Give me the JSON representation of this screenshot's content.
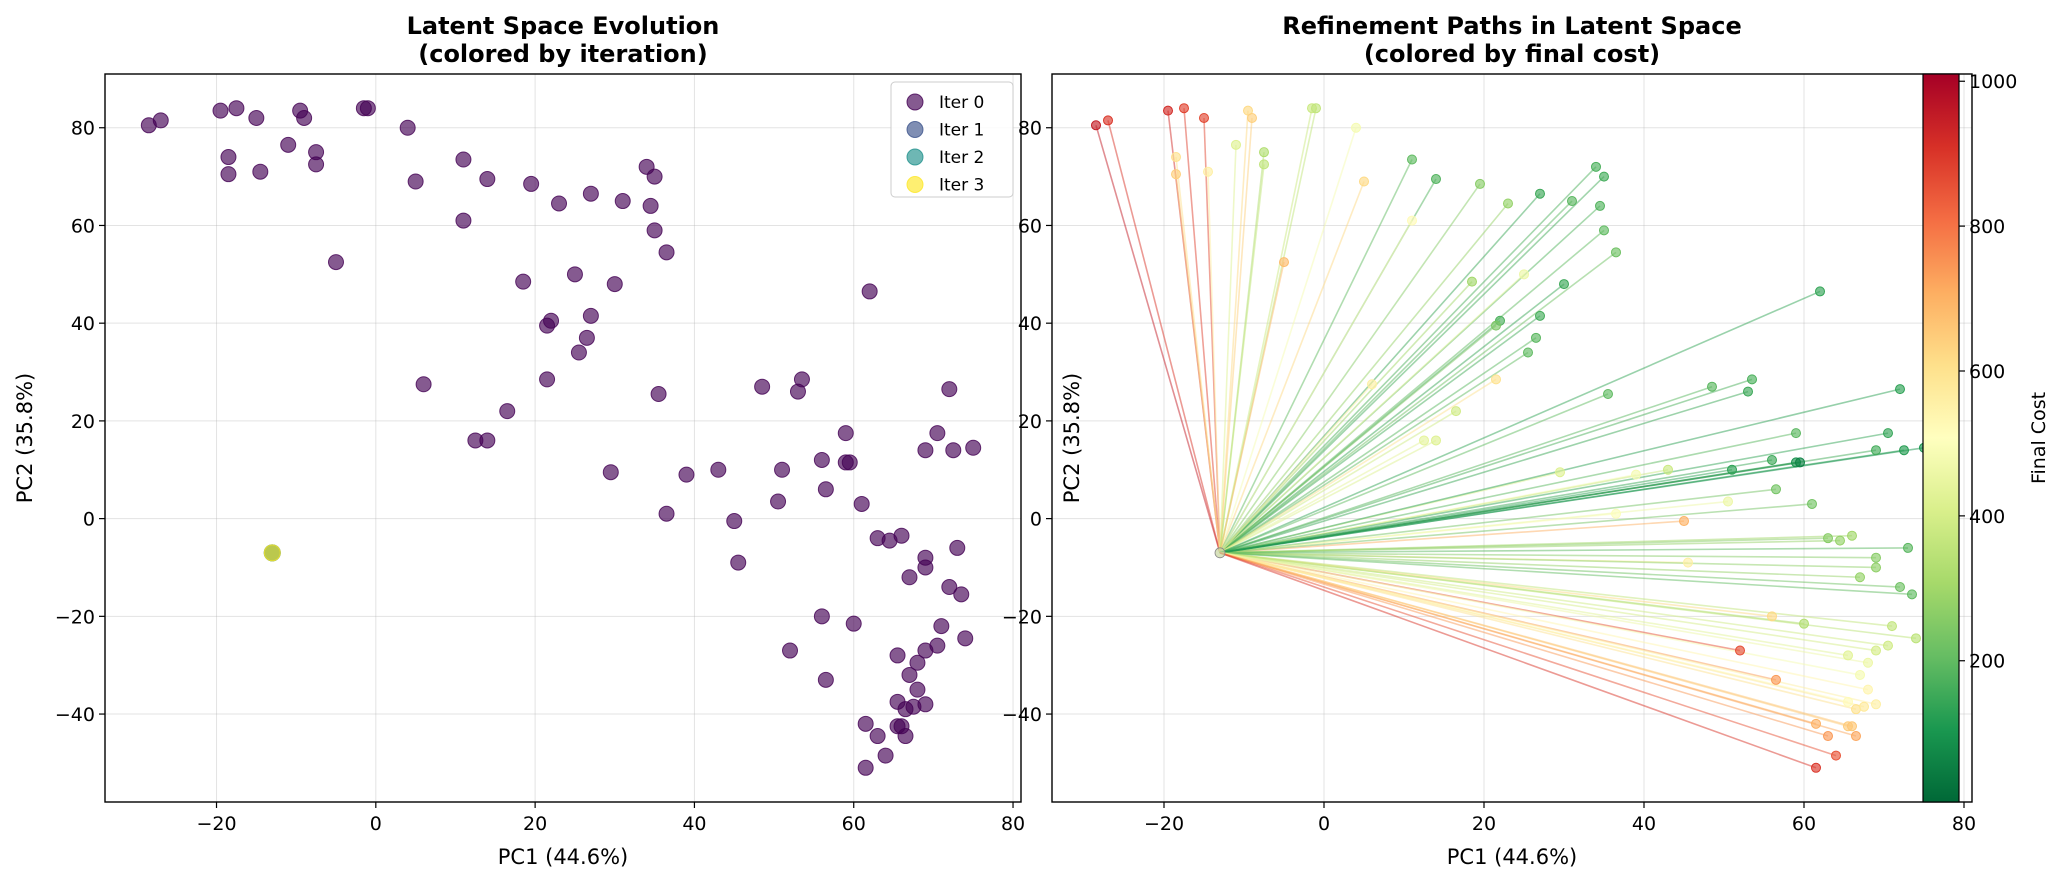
{
  "chart_data": [
    {
      "type": "scatter",
      "title": "Latent Space Evolution",
      "subtitle": "(colored by iteration)",
      "xlabel": "PC1 (44.6%)",
      "ylabel": "PC2 (35.8%)",
      "xlim": [
        -34,
        81
      ],
      "ylim": [
        -58,
        91
      ],
      "xticks": [
        -20,
        0,
        20,
        40,
        60,
        80
      ],
      "yticks": [
        -40,
        -20,
        0,
        20,
        40,
        60,
        80
      ],
      "grid": true,
      "legend_position": "top-right",
      "series": [
        {
          "name": "Iter 0",
          "color": "#440154",
          "note": "initial points",
          "source": "points"
        },
        {
          "name": "Iter 1",
          "color": "#3b528b",
          "source": "origin"
        },
        {
          "name": "Iter 2",
          "color": "#21918c",
          "source": "origin"
        },
        {
          "name": "Iter 3",
          "color": "#fde725",
          "source": "origin"
        }
      ],
      "origin": [
        -13,
        -7
      ],
      "points": [
        [
          -28.5,
          80.5
        ],
        [
          -27,
          81.5
        ],
        [
          -19.5,
          83.5
        ],
        [
          -17.5,
          84
        ],
        [
          -15,
          82
        ],
        [
          -9.5,
          83.5
        ],
        [
          -9,
          82
        ],
        [
          -1.5,
          84
        ],
        [
          -1,
          84
        ],
        [
          4,
          80
        ],
        [
          -18.5,
          74
        ],
        [
          -18.5,
          70.5
        ],
        [
          -14.5,
          71
        ],
        [
          -11,
          76.5
        ],
        [
          -7.5,
          75
        ],
        [
          -7.5,
          72.5
        ],
        [
          5,
          69
        ],
        [
          11,
          73.5
        ],
        [
          14,
          69.5
        ],
        [
          19.5,
          68.5
        ],
        [
          23,
          64.5
        ],
        [
          27,
          66.5
        ],
        [
          31,
          65
        ],
        [
          34,
          72
        ],
        [
          35,
          70
        ],
        [
          34.5,
          64
        ],
        [
          35,
          59
        ],
        [
          36.5,
          54.5
        ],
        [
          11,
          61
        ],
        [
          -5,
          52.5
        ],
        [
          18.5,
          48.5
        ],
        [
          25,
          50
        ],
        [
          30,
          48
        ],
        [
          22,
          40.5
        ],
        [
          21.5,
          39.5
        ],
        [
          27,
          41.5
        ],
        [
          26.5,
          37
        ],
        [
          25.5,
          34
        ],
        [
          6,
          27.5
        ],
        [
          21.5,
          28.5
        ],
        [
          16.5,
          22
        ],
        [
          12.5,
          16
        ],
        [
          14,
          16
        ],
        [
          29.5,
          9.5
        ],
        [
          36.5,
          1
        ],
        [
          35.5,
          25.5
        ],
        [
          39,
          9
        ],
        [
          43,
          10
        ],
        [
          45,
          -0.5
        ],
        [
          45.5,
          -9
        ],
        [
          48.5,
          27
        ],
        [
          53.5,
          28.5
        ],
        [
          53,
          26
        ],
        [
          51,
          10
        ],
        [
          50.5,
          3.5
        ],
        [
          56,
          12
        ],
        [
          56.5,
          6
        ],
        [
          59,
          17.5
        ],
        [
          59,
          11.5
        ],
        [
          59.5,
          11.5
        ],
        [
          62,
          46.5
        ],
        [
          61,
          3
        ],
        [
          60,
          -21.5
        ],
        [
          56,
          -20
        ],
        [
          56.5,
          -33
        ],
        [
          52,
          -27
        ],
        [
          63,
          -4
        ],
        [
          64.5,
          -4.5
        ],
        [
          66,
          -3.5
        ],
        [
          67,
          -12
        ],
        [
          69,
          -8
        ],
        [
          69,
          -10
        ],
        [
          69,
          14
        ],
        [
          70.5,
          17.5
        ],
        [
          72,
          26.5
        ],
        [
          72.5,
          14
        ],
        [
          75,
          14.5
        ],
        [
          73,
          -6
        ],
        [
          72,
          -14
        ],
        [
          73.5,
          -15.5
        ],
        [
          71,
          -22
        ],
        [
          70.5,
          -26
        ],
        [
          69,
          -27
        ],
        [
          68,
          -29.5
        ],
        [
          74,
          -24.5
        ],
        [
          65.5,
          -28
        ],
        [
          67,
          -32
        ],
        [
          68,
          -35
        ],
        [
          69,
          -38
        ],
        [
          65.5,
          -37.5
        ],
        [
          66.5,
          -39
        ],
        [
          67.5,
          -38.5
        ],
        [
          65.5,
          -42.5
        ],
        [
          66,
          -42.5
        ],
        [
          61.5,
          -42
        ],
        [
          66.5,
          -44.5
        ],
        [
          63,
          -44.5
        ],
        [
          64,
          -48.5
        ],
        [
          61.5,
          -51
        ]
      ]
    },
    {
      "type": "line",
      "title": "Refinement Paths in Latent Space",
      "subtitle": "(colored by final cost)",
      "xlabel": "PC1 (44.6%)",
      "ylabel": "PC2 (35.8%)",
      "xlim": [
        -34,
        81
      ],
      "ylim": [
        -58,
        91
      ],
      "xticks": [
        -20,
        0,
        20,
        40,
        60,
        80
      ],
      "yticks": [
        -40,
        -20,
        0,
        20,
        40,
        60,
        80
      ],
      "grid": true,
      "colorbar": {
        "label": "Final Cost",
        "range": [
          5,
          1010
        ],
        "ticks": [
          200,
          400,
          600,
          800,
          1000
        ],
        "colormap": "RdYlGn_r"
      },
      "origin": [
        -13,
        -7
      ],
      "note": "each path runs from origin to a point; cost values estimated from colors",
      "paths": [
        [
          -28.5,
          80.5,
          950
        ],
        [
          -27,
          81.5,
          900
        ],
        [
          -19.5,
          83.5,
          920
        ],
        [
          -17.5,
          84,
          880
        ],
        [
          -15,
          82,
          870
        ],
        [
          -9.5,
          83.5,
          620
        ],
        [
          -9,
          82,
          640
        ],
        [
          -1.5,
          84,
          380
        ],
        [
          -1,
          84,
          360
        ],
        [
          4,
          80,
          480
        ],
        [
          -18.5,
          74,
          600
        ],
        [
          -18.5,
          70.5,
          640
        ],
        [
          -14.5,
          71,
          560
        ],
        [
          -11,
          76.5,
          420
        ],
        [
          -7.5,
          75,
          330
        ],
        [
          -7.5,
          72.5,
          360
        ],
        [
          5,
          69,
          620
        ],
        [
          11,
          73.5,
          200
        ],
        [
          14,
          69.5,
          180
        ],
        [
          19.5,
          68.5,
          260
        ],
        [
          23,
          64.5,
          280
        ],
        [
          27,
          66.5,
          150
        ],
        [
          31,
          65,
          190
        ],
        [
          34,
          72,
          170
        ],
        [
          35,
          70,
          160
        ],
        [
          34.5,
          64,
          180
        ],
        [
          35,
          59,
          200
        ],
        [
          36.5,
          54.5,
          220
        ],
        [
          11,
          61,
          520
        ],
        [
          -5,
          52.5,
          680
        ],
        [
          18.5,
          48.5,
          300
        ],
        [
          25,
          50,
          460
        ],
        [
          30,
          48,
          150
        ],
        [
          22,
          40.5,
          170
        ],
        [
          21.5,
          39.5,
          240
        ],
        [
          27,
          41.5,
          160
        ],
        [
          26.5,
          37,
          190
        ],
        [
          25.5,
          34,
          200
        ],
        [
          6,
          27.5,
          560
        ],
        [
          21.5,
          28.5,
          600
        ],
        [
          16.5,
          22,
          390
        ],
        [
          12.5,
          16,
          440
        ],
        [
          14,
          16,
          420
        ],
        [
          29.5,
          9.5,
          420
        ],
        [
          36.5,
          1,
          500
        ],
        [
          35.5,
          25.5,
          200
        ],
        [
          39,
          9,
          480
        ],
        [
          43,
          10,
          380
        ],
        [
          45,
          -0.5,
          700
        ],
        [
          45.5,
          -9,
          560
        ],
        [
          48.5,
          27,
          190
        ],
        [
          53.5,
          28.5,
          170
        ],
        [
          53,
          26,
          150
        ],
        [
          51,
          10,
          130
        ],
        [
          50.5,
          3.5,
          460
        ],
        [
          56,
          12,
          150
        ],
        [
          56.5,
          6,
          230
        ],
        [
          59,
          17.5,
          190
        ],
        [
          59,
          11.5,
          90
        ],
        [
          59.5,
          11.5,
          60
        ],
        [
          62,
          46.5,
          140
        ],
        [
          61,
          3,
          230
        ],
        [
          60,
          -21.5,
          330
        ],
        [
          56,
          -20,
          620
        ],
        [
          56.5,
          -33,
          740
        ],
        [
          52,
          -27,
          860
        ],
        [
          63,
          -4,
          260
        ],
        [
          64.5,
          -4.5,
          280
        ],
        [
          66,
          -3.5,
          300
        ],
        [
          67,
          -12,
          280
        ],
        [
          69,
          -8,
          260
        ],
        [
          69,
          -10,
          270
        ],
        [
          69,
          14,
          160
        ],
        [
          70.5,
          17.5,
          140
        ],
        [
          72,
          26.5,
          130
        ],
        [
          72.5,
          14,
          120
        ],
        [
          75,
          14.5,
          100
        ],
        [
          73,
          -6,
          190
        ],
        [
          72,
          -14,
          220
        ],
        [
          73.5,
          -15.5,
          200
        ],
        [
          71,
          -22,
          360
        ],
        [
          70.5,
          -26,
          390
        ],
        [
          69,
          -27,
          400
        ],
        [
          68,
          -29.5,
          460
        ],
        [
          74,
          -24.5,
          350
        ],
        [
          65.5,
          -28,
          430
        ],
        [
          67,
          -32,
          480
        ],
        [
          68,
          -35,
          540
        ],
        [
          69,
          -38,
          560
        ],
        [
          65.5,
          -37.5,
          520
        ],
        [
          66.5,
          -39,
          600
        ],
        [
          67.5,
          -38.5,
          580
        ],
        [
          65.5,
          -42.5,
          650
        ],
        [
          66,
          -42.5,
          660
        ],
        [
          61.5,
          -42,
          700
        ],
        [
          66.5,
          -44.5,
          720
        ],
        [
          63,
          -44.5,
          740
        ],
        [
          64,
          -48.5,
          850
        ],
        [
          61.5,
          -51,
          900
        ]
      ]
    }
  ]
}
